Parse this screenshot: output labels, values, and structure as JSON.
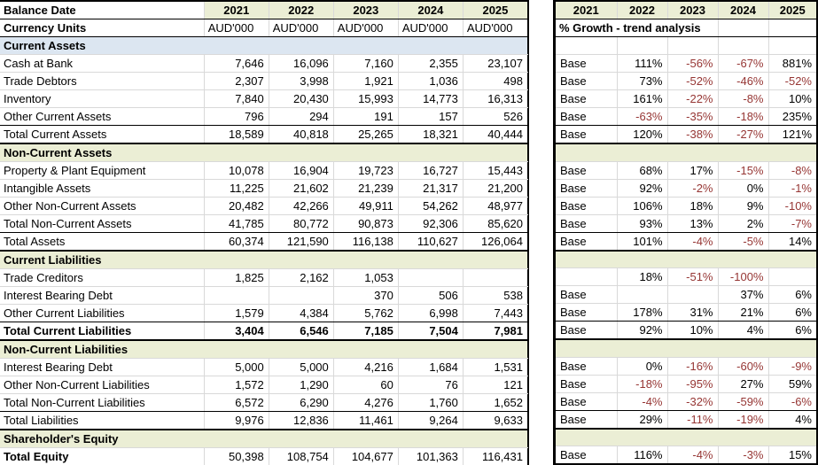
{
  "years": [
    "2021",
    "2022",
    "2023",
    "2024",
    "2025"
  ],
  "colors": {
    "section_yellow": "#EBEED5",
    "section_blue": "#DCE6F1",
    "negative_value": "#963634",
    "gridline": "#D9D9D9",
    "border": "#000000"
  },
  "left_table": {
    "title": "Balance Date",
    "units_label": "Currency Units",
    "units": [
      "AUD'000",
      "AUD'000",
      "AUD'000",
      "AUD'000",
      "AUD'000"
    ]
  },
  "right_table": {
    "subtitle": "% Growth - trend analysis"
  },
  "rows": [
    {
      "label": "Current Assets",
      "section": true,
      "tone": "blue"
    },
    {
      "label": "Cash at Bank",
      "values": [
        "7,646",
        "16,096",
        "7,160",
        "2,355",
        "23,107"
      ],
      "growth": [
        "Base",
        "111%",
        "-56%",
        "-67%",
        "881%"
      ]
    },
    {
      "label": "Trade Debtors",
      "values": [
        "2,307",
        "3,998",
        "1,921",
        "1,036",
        "498"
      ],
      "growth": [
        "Base",
        "73%",
        "-52%",
        "-46%",
        "-52%"
      ]
    },
    {
      "label": "Inventory",
      "values": [
        "7,840",
        "20,430",
        "15,993",
        "14,773",
        "16,313"
      ],
      "growth": [
        "Base",
        "161%",
        "-22%",
        "-8%",
        "10%"
      ]
    },
    {
      "label": "Other Current Assets",
      "values": [
        "796",
        "294",
        "191",
        "157",
        "526"
      ],
      "growth": [
        "Base",
        "-63%",
        "-35%",
        "-18%",
        "235%"
      ],
      "pre_total": true
    },
    {
      "label": "Total Current Assets",
      "values": [
        "18,589",
        "40,818",
        "25,265",
        "18,321",
        "40,444"
      ],
      "growth": [
        "Base",
        "120%",
        "-38%",
        "-27%",
        "121%"
      ],
      "total_line": true
    },
    {
      "label": "Non-Current Assets",
      "section": true,
      "tone": "yellow"
    },
    {
      "label": "Property & Plant Equipment",
      "values": [
        "10,078",
        "16,904",
        "19,723",
        "16,727",
        "15,443"
      ],
      "growth": [
        "Base",
        "68%",
        "17%",
        "-15%",
        "-8%"
      ]
    },
    {
      "label": "Intangible Assets",
      "values": [
        "11,225",
        "21,602",
        "21,239",
        "21,317",
        "21,200"
      ],
      "growth": [
        "Base",
        "92%",
        "-2%",
        "0%",
        "-1%"
      ]
    },
    {
      "label": "Other Non-Current Assets",
      "values": [
        "20,482",
        "42,266",
        "49,911",
        "54,262",
        "48,977"
      ],
      "growth": [
        "Base",
        "106%",
        "18%",
        "9%",
        "-10%"
      ]
    },
    {
      "label": "Total Non-Current Assets",
      "values": [
        "41,785",
        "80,772",
        "90,873",
        "92,306",
        "85,620"
      ],
      "growth": [
        "Base",
        "93%",
        "13%",
        "2%",
        "-7%"
      ],
      "pre_total": true
    },
    {
      "label": "Total Assets",
      "values": [
        "60,374",
        "121,590",
        "116,138",
        "110,627",
        "126,064"
      ],
      "growth": [
        "Base",
        "101%",
        "-4%",
        "-5%",
        "14%"
      ],
      "total_line": true
    },
    {
      "label": "Current Liabilities",
      "section": true,
      "tone": "yellow"
    },
    {
      "label": "Trade Creditors",
      "values": [
        "1,825",
        "2,162",
        "1,053",
        "",
        ""
      ],
      "growth": [
        "",
        "18%",
        "-51%",
        "-100%",
        ""
      ]
    },
    {
      "label": "Interest Bearing Debt",
      "values": [
        "",
        "",
        "370",
        "506",
        "538"
      ],
      "growth": [
        "Base",
        "",
        "",
        "37%",
        "6%"
      ]
    },
    {
      "label": "Other Current Liabilities",
      "values": [
        "1,579",
        "4,384",
        "5,762",
        "6,998",
        "7,443"
      ],
      "growth": [
        "Base",
        "178%",
        "31%",
        "21%",
        "6%"
      ],
      "pre_total": true
    },
    {
      "label": "Total Current Liabilities",
      "values": [
        "3,404",
        "6,546",
        "7,185",
        "7,504",
        "7,981"
      ],
      "growth": [
        "Base",
        "92%",
        "10%",
        "4%",
        "6%"
      ],
      "total_line": true,
      "bold": true
    },
    {
      "label": "Non-Current Liabilities",
      "section": true,
      "tone": "yellow"
    },
    {
      "label": "Interest Bearing Debt",
      "values": [
        "5,000",
        "5,000",
        "4,216",
        "1,684",
        "1,531"
      ],
      "growth": [
        "Base",
        "0%",
        "-16%",
        "-60%",
        "-9%"
      ]
    },
    {
      "label": "Other Non-Current Liabilities",
      "values": [
        "1,572",
        "1,290",
        "60",
        "76",
        "121"
      ],
      "growth": [
        "Base",
        "-18%",
        "-95%",
        "27%",
        "59%"
      ]
    },
    {
      "label": "Total Non-Current Liabilities",
      "values": [
        "6,572",
        "6,290",
        "4,276",
        "1,760",
        "1,652"
      ],
      "growth": [
        "Base",
        "-4%",
        "-32%",
        "-59%",
        "-6%"
      ],
      "pre_total": true
    },
    {
      "label": "Total Liabilities",
      "values": [
        "9,976",
        "12,836",
        "11,461",
        "9,264",
        "9,633"
      ],
      "growth": [
        "Base",
        "29%",
        "-11%",
        "-19%",
        "4%"
      ],
      "total_line": true
    },
    {
      "label": "Shareholder's Equity",
      "section": true,
      "tone": "yellow"
    },
    {
      "label": "Total Equity",
      "values": [
        "50,398",
        "108,754",
        "104,677",
        "101,363",
        "116,431"
      ],
      "growth": [
        "Base",
        "116%",
        "-4%",
        "-3%",
        "15%"
      ],
      "label_bold": true
    }
  ]
}
